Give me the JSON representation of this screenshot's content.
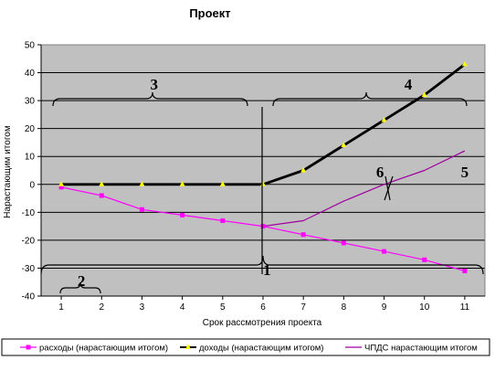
{
  "chart_data": {
    "type": "line",
    "title": "Проект",
    "xlabel": "Срок рассмотрения проекта",
    "ylabel": "Нарастающим итогом",
    "x": [
      1,
      2,
      3,
      4,
      5,
      6,
      7,
      8,
      9,
      10,
      11
    ],
    "x_tick_labels": [
      "1",
      "2",
      "3",
      "4",
      "5",
      "6",
      "7",
      "8",
      "9",
      "10",
      "11"
    ],
    "ylim": [
      -40,
      50
    ],
    "y_ticks": [
      -40,
      -30,
      -20,
      -10,
      0,
      10,
      20,
      30,
      40,
      50
    ],
    "y_tick_labels": [
      "-40",
      "-30",
      "-20",
      "-10",
      "0",
      "10",
      "20",
      "30",
      "40",
      "50"
    ],
    "grid": true,
    "background": "#c0c0c0",
    "legend_position": "bottom",
    "series": [
      {
        "name": "расходы (нарастающим итогом)",
        "color": "#ff00ff",
        "marker": "square",
        "values": [
          -1,
          -4,
          -9,
          -11,
          -13,
          -15,
          -18,
          -21,
          -24,
          -27,
          -31
        ]
      },
      {
        "name": "доходы (нарастающим итогом)",
        "color": "#000000",
        "marker": "triangle",
        "marker_color": "#ffff00",
        "values": [
          0,
          0,
          0,
          0,
          0,
          0,
          5,
          14,
          23,
          32,
          43
        ]
      },
      {
        "name": "ЧПДС нарастающим итогом",
        "color": "#a000a0",
        "marker": "none",
        "values": [
          null,
          null,
          null,
          null,
          null,
          -15,
          -13,
          -6,
          0,
          5,
          12
        ]
      }
    ],
    "annotations": [
      {
        "label": "1",
        "x": 6.1,
        "y": -30.5
      },
      {
        "label": "2",
        "x": 1.5,
        "y": -34.5
      },
      {
        "label": "3",
        "x": 3.3,
        "y": 36
      },
      {
        "label": "4",
        "x": 9.6,
        "y": 36
      },
      {
        "label": "5",
        "x": 11,
        "y": 4.5
      },
      {
        "label": "6",
        "x": 8.9,
        "y": 4.5
      }
    ]
  }
}
